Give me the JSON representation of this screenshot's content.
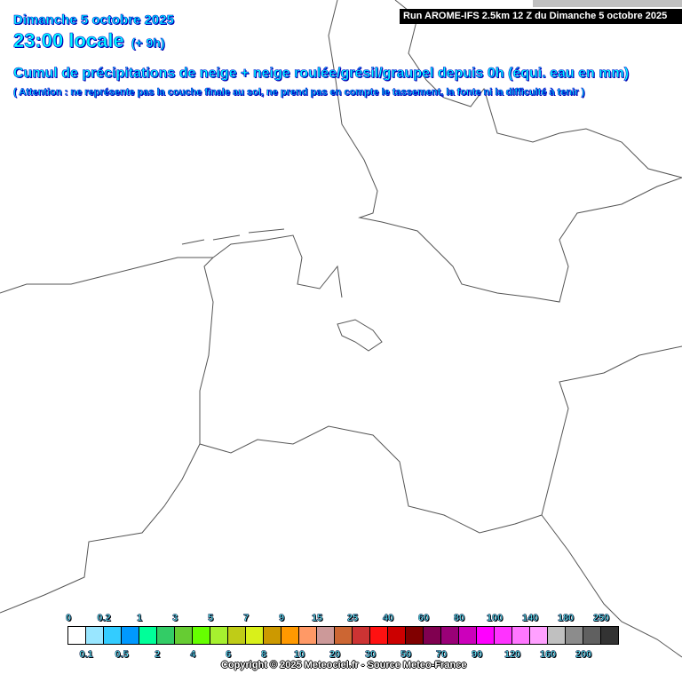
{
  "header": {
    "date": "Dimanche 5 octobre 2025",
    "time": "23:00 locale",
    "offset": "(+ 9h)",
    "title": "Cumul de précipitations de neige + neige roulée/grésil/graupel depuis 0h (équi. eau en mm)",
    "warning": "( Attention : ne représente pas la couche finale au sol, ne prend pas en compte le tassement, la fonte ni la difficulté à tenir )",
    "run": "Run AROME-IFS 2.5km 12 Z du Dimanche 5 octobre 2025"
  },
  "legend": {
    "labels": [
      "0",
      "0.1",
      "0.2",
      "0.5",
      "1",
      "2",
      "3",
      "4",
      "5",
      "6",
      "7",
      "8",
      "9",
      "10",
      "15",
      "20",
      "25",
      "30",
      "40",
      "50",
      "60",
      "70",
      "80",
      "90",
      "100",
      "120",
      "140",
      "160",
      "180",
      "200",
      "250"
    ],
    "colors": [
      "#ffffff",
      "#99e6ff",
      "#33ccff",
      "#0099ff",
      "#00ff99",
      "#33cc66",
      "#66cc33",
      "#66ff00",
      "#a6f02f",
      "#bfcc17",
      "#d9f01a",
      "#cc9900",
      "#ff9900",
      "#ff9966",
      "#cc9999",
      "#cc6633",
      "#cc3333",
      "#ff1111",
      "#cc0000",
      "#800000",
      "#800050",
      "#990077",
      "#cc00bb",
      "#ff00ff",
      "#ff33ff",
      "#ff77ff",
      "#ffa0ff",
      "#c0c0c0",
      "#8c8c8c",
      "#606060",
      "#333333"
    ]
  },
  "copyright": "Copyright © 2025 Meteociel.fr - Source Meteo-France"
}
